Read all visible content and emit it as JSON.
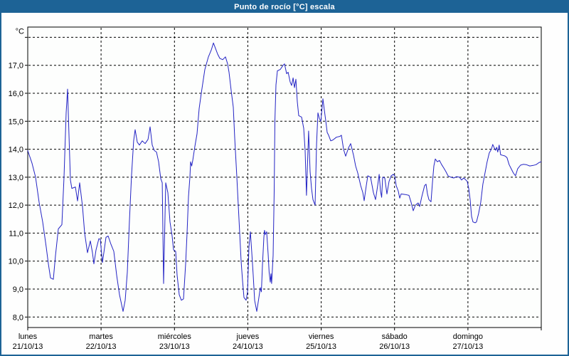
{
  "window": {
    "title": "Punto de rocío [°C] escala"
  },
  "colors": {
    "frame": "#1d6396",
    "title_text": "#ffffff",
    "line": "#2323c4",
    "grid": "#000000",
    "plot_bg": "#fdfefd"
  },
  "chart_data": {
    "type": "line",
    "title": "Punto de rocío [°C] escala",
    "ylabel": "°C",
    "unit": "°C",
    "ylim": [
      7.63,
      18.37
    ],
    "grid": true,
    "grid_style": "dashed",
    "legend_position": "none",
    "y_gridline_values": [
      8,
      9,
      10,
      11,
      12,
      13,
      14,
      15,
      16,
      17,
      18
    ],
    "y_ticks": [
      {
        "value": 8,
        "label": "8,0"
      },
      {
        "value": 9,
        "label": "9,0"
      },
      {
        "value": 10,
        "label": "10,0"
      },
      {
        "value": 11,
        "label": "11,0"
      },
      {
        "value": 12,
        "label": "12,0"
      },
      {
        "value": 13,
        "label": "13,0"
      },
      {
        "value": 14,
        "label": "14,0"
      },
      {
        "value": 15,
        "label": "15,0"
      },
      {
        "value": 16,
        "label": "16,0"
      },
      {
        "value": 17,
        "label": "17,0"
      }
    ],
    "x_days": [
      {
        "name": "lunes",
        "date": "21/10/13"
      },
      {
        "name": "martes",
        "date": "22/10/13"
      },
      {
        "name": "miércoles",
        "date": "23/10/13"
      },
      {
        "name": "jueves",
        "date": "24/10/13"
      },
      {
        "name": "viernes",
        "date": "25/10/13"
      },
      {
        "name": "sábado",
        "date": "26/10/13"
      },
      {
        "name": "domingo",
        "date": "27/10/13"
      }
    ],
    "series": [
      {
        "name": "Punto de rocío",
        "color": "#2323c4",
        "points": [
          [
            0.0,
            13.95
          ],
          [
            0.058,
            13.5
          ],
          [
            0.107,
            13.0
          ],
          [
            0.155,
            12.1
          ],
          [
            0.204,
            11.4
          ],
          [
            0.252,
            10.5
          ],
          [
            0.281,
            9.9
          ],
          [
            0.31,
            9.4
          ],
          [
            0.349,
            9.35
          ],
          [
            0.378,
            10.2
          ],
          [
            0.417,
            11.15
          ],
          [
            0.465,
            11.3
          ],
          [
            0.494,
            13.0
          ],
          [
            0.524,
            15.3
          ],
          [
            0.543,
            16.15
          ],
          [
            0.562,
            14.5
          ],
          [
            0.582,
            12.9
          ],
          [
            0.601,
            12.6
          ],
          [
            0.65,
            12.65
          ],
          [
            0.679,
            12.15
          ],
          [
            0.708,
            12.8
          ],
          [
            0.747,
            11.95
          ],
          [
            0.776,
            11.0
          ],
          [
            0.814,
            10.3
          ],
          [
            0.853,
            10.72
          ],
          [
            0.882,
            10.3
          ],
          [
            0.902,
            9.9
          ],
          [
            0.931,
            10.4
          ],
          [
            0.97,
            10.8
          ],
          [
            0.989,
            10.78
          ],
          [
            1.018,
            9.95
          ],
          [
            1.037,
            10.3
          ],
          [
            1.066,
            10.85
          ],
          [
            1.096,
            10.9
          ],
          [
            1.134,
            10.6
          ],
          [
            1.173,
            10.35
          ],
          [
            1.212,
            9.5
          ],
          [
            1.251,
            8.8
          ],
          [
            1.299,
            8.2
          ],
          [
            1.328,
            8.6
          ],
          [
            1.357,
            9.6
          ],
          [
            1.386,
            11.45
          ],
          [
            1.415,
            13.05
          ],
          [
            1.444,
            14.3
          ],
          [
            1.464,
            14.7
          ],
          [
            1.493,
            14.25
          ],
          [
            1.522,
            14.15
          ],
          [
            1.561,
            14.3
          ],
          [
            1.6,
            14.2
          ],
          [
            1.639,
            14.35
          ],
          [
            1.668,
            14.8
          ],
          [
            1.697,
            14.15
          ],
          [
            1.726,
            13.95
          ],
          [
            1.755,
            13.9
          ],
          [
            1.784,
            13.55
          ],
          [
            1.813,
            12.95
          ],
          [
            1.833,
            12.8
          ],
          [
            1.852,
            9.2
          ],
          [
            1.881,
            12.8
          ],
          [
            1.91,
            12.45
          ],
          [
            1.939,
            11.4
          ],
          [
            1.968,
            10.9
          ],
          [
            1.988,
            10.4
          ],
          [
            2.017,
            10.35
          ],
          [
            2.036,
            9.5
          ],
          [
            2.065,
            8.8
          ],
          [
            2.094,
            8.6
          ],
          [
            2.123,
            8.65
          ],
          [
            2.152,
            9.9
          ],
          [
            2.172,
            11.0
          ],
          [
            2.191,
            12.3
          ],
          [
            2.211,
            13.0
          ],
          [
            2.22,
            13.55
          ],
          [
            2.235,
            13.4
          ],
          [
            2.249,
            13.6
          ],
          [
            2.278,
            14.1
          ],
          [
            2.307,
            14.55
          ],
          [
            2.337,
            15.45
          ],
          [
            2.366,
            16.0
          ],
          [
            2.414,
            16.85
          ],
          [
            2.463,
            17.3
          ],
          [
            2.502,
            17.55
          ],
          [
            2.531,
            17.8
          ],
          [
            2.56,
            17.6
          ],
          [
            2.589,
            17.4
          ],
          [
            2.618,
            17.25
          ],
          [
            2.657,
            17.2
          ],
          [
            2.695,
            17.3
          ],
          [
            2.724,
            17.05
          ],
          [
            2.744,
            16.75
          ],
          [
            2.773,
            16.1
          ],
          [
            2.802,
            15.5
          ],
          [
            2.821,
            14.4
          ],
          [
            2.85,
            13.0
          ],
          [
            2.87,
            12.0
          ],
          [
            2.889,
            11.0
          ],
          [
            2.909,
            10.0
          ],
          [
            2.928,
            9.3
          ],
          [
            2.947,
            8.7
          ],
          [
            2.976,
            8.6
          ],
          [
            2.996,
            8.9
          ],
          [
            3.015,
            10.5
          ],
          [
            3.035,
            11.05
          ],
          [
            3.054,
            10.3
          ],
          [
            3.073,
            9.5
          ],
          [
            3.093,
            8.6
          ],
          [
            3.122,
            8.2
          ],
          [
            3.151,
            8.7
          ],
          [
            3.17,
            9.05
          ],
          [
            3.185,
            8.9
          ],
          [
            3.199,
            9.85
          ],
          [
            3.219,
            10.85
          ],
          [
            3.228,
            11.1
          ],
          [
            3.238,
            10.95
          ],
          [
            3.257,
            11.05
          ],
          [
            3.277,
            10.25
          ],
          [
            3.291,
            9.6
          ],
          [
            3.306,
            9.25
          ],
          [
            3.316,
            9.55
          ],
          [
            3.325,
            9.2
          ],
          [
            3.345,
            10.2
          ],
          [
            3.359,
            12.5
          ],
          [
            3.369,
            15.0
          ],
          [
            3.384,
            16.3
          ],
          [
            3.403,
            16.8
          ],
          [
            3.442,
            16.85
          ],
          [
            3.481,
            17.0
          ],
          [
            3.5,
            17.05
          ],
          [
            3.529,
            16.7
          ],
          [
            3.549,
            16.75
          ],
          [
            3.578,
            16.4
          ],
          [
            3.597,
            16.28
          ],
          [
            3.617,
            16.55
          ],
          [
            3.636,
            16.2
          ],
          [
            3.655,
            16.5
          ],
          [
            3.675,
            15.7
          ],
          [
            3.694,
            15.2
          ],
          [
            3.733,
            15.15
          ],
          [
            3.762,
            14.75
          ],
          [
            3.781,
            13.95
          ],
          [
            3.8,
            12.35
          ],
          [
            3.829,
            14.65
          ],
          [
            3.849,
            13.2
          ],
          [
            3.868,
            12.6
          ],
          [
            3.888,
            12.2
          ],
          [
            3.917,
            12.0
          ],
          [
            3.937,
            14.2
          ],
          [
            3.956,
            15.3
          ],
          [
            3.975,
            15.1
          ],
          [
            3.995,
            15.0
          ],
          [
            4.024,
            15.8
          ],
          [
            4.043,
            15.4
          ],
          [
            4.063,
            15.0
          ],
          [
            4.082,
            14.6
          ],
          [
            4.101,
            14.5
          ],
          [
            4.13,
            14.3
          ],
          [
            4.159,
            14.33
          ],
          [
            4.208,
            14.43
          ],
          [
            4.256,
            14.46
          ],
          [
            4.276,
            14.5
          ],
          [
            4.305,
            14.0
          ],
          [
            4.334,
            13.75
          ],
          [
            4.373,
            14.05
          ],
          [
            4.402,
            14.2
          ],
          [
            4.441,
            13.78
          ],
          [
            4.47,
            13.4
          ],
          [
            4.499,
            13.15
          ],
          [
            4.538,
            12.7
          ],
          [
            4.567,
            12.45
          ],
          [
            4.586,
            12.16
          ],
          [
            4.615,
            12.7
          ],
          [
            4.635,
            13.05
          ],
          [
            4.673,
            13.0
          ],
          [
            4.712,
            12.45
          ],
          [
            4.741,
            12.2
          ],
          [
            4.77,
            12.7
          ],
          [
            4.79,
            13.1
          ],
          [
            4.809,
            12.5
          ],
          [
            4.824,
            12.28
          ],
          [
            4.838,
            13.0
          ],
          [
            4.867,
            12.97
          ],
          [
            4.896,
            12.4
          ],
          [
            4.925,
            12.85
          ],
          [
            4.954,
            13.05
          ],
          [
            4.983,
            13.1
          ],
          [
            5.003,
            13.05
          ],
          [
            5.022,
            12.7
          ],
          [
            5.051,
            12.5
          ],
          [
            5.071,
            12.25
          ],
          [
            5.09,
            12.4
          ],
          [
            5.148,
            12.38
          ],
          [
            5.197,
            12.35
          ],
          [
            5.226,
            12.1
          ],
          [
            5.255,
            11.8
          ],
          [
            5.284,
            12.0
          ],
          [
            5.322,
            12.08
          ],
          [
            5.342,
            11.95
          ],
          [
            5.371,
            12.3
          ],
          [
            5.41,
            12.7
          ],
          [
            5.429,
            12.75
          ],
          [
            5.449,
            12.4
          ],
          [
            5.468,
            12.2
          ],
          [
            5.497,
            12.12
          ],
          [
            5.517,
            12.8
          ],
          [
            5.536,
            13.4
          ],
          [
            5.555,
            13.65
          ],
          [
            5.584,
            13.55
          ],
          [
            5.613,
            13.6
          ],
          [
            5.642,
            13.45
          ],
          [
            5.671,
            13.33
          ],
          [
            5.7,
            13.2
          ],
          [
            5.729,
            13.05
          ],
          [
            5.768,
            13.0
          ],
          [
            5.807,
            12.97
          ],
          [
            5.846,
            13.02
          ],
          [
            5.885,
            13.0
          ],
          [
            5.914,
            12.9
          ],
          [
            5.943,
            12.97
          ],
          [
            5.972,
            12.9
          ],
          [
            5.991,
            12.85
          ],
          [
            6.011,
            12.6
          ],
          [
            6.03,
            12.2
          ],
          [
            6.05,
            11.6
          ],
          [
            6.069,
            11.4
          ],
          [
            6.098,
            11.37
          ],
          [
            6.117,
            11.4
          ],
          [
            6.146,
            11.7
          ],
          [
            6.175,
            12.1
          ],
          [
            6.204,
            12.75
          ],
          [
            6.233,
            13.15
          ],
          [
            6.262,
            13.55
          ],
          [
            6.291,
            13.87
          ],
          [
            6.32,
            14.0
          ],
          [
            6.339,
            14.17
          ],
          [
            6.359,
            14.05
          ],
          [
            6.378,
            13.96
          ],
          [
            6.392,
            14.07
          ],
          [
            6.407,
            13.9
          ],
          [
            6.426,
            14.15
          ],
          [
            6.446,
            13.8
          ],
          [
            6.475,
            13.78
          ],
          [
            6.504,
            13.76
          ],
          [
            6.533,
            13.7
          ],
          [
            6.562,
            13.45
          ],
          [
            6.591,
            13.3
          ],
          [
            6.62,
            13.15
          ],
          [
            6.649,
            13.05
          ],
          [
            6.678,
            13.3
          ],
          [
            6.717,
            13.43
          ],
          [
            6.755,
            13.46
          ],
          [
            6.794,
            13.45
          ],
          [
            6.843,
            13.4
          ],
          [
            6.891,
            13.42
          ],
          [
            6.93,
            13.45
          ],
          [
            6.969,
            13.52
          ],
          [
            6.998,
            13.55
          ]
        ]
      }
    ]
  }
}
